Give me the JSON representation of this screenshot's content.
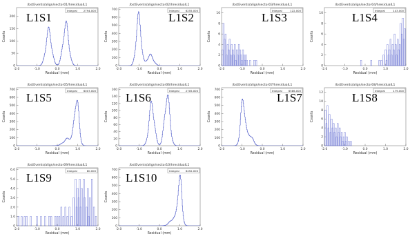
{
  "chart_data": [
    {
      "type": "line",
      "title": "/bstEvents/align/sector01/hresidualL1",
      "label": "L1S1",
      "integral_label": "Integral",
      "integral": "2794.000",
      "xlabel": "Residual (mm)",
      "ylabel": "Counts",
      "xlim": [
        -2.0,
        2.0
      ],
      "ylim": [
        0,
        235
      ],
      "xticks": [
        "-2.0",
        "-1.0",
        "0.0",
        "1.0",
        "2.0"
      ],
      "yticks": [
        "0",
        "50",
        "100",
        "150",
        "200"
      ],
      "peaks": [
        {
          "x": -0.42,
          "w": 0.14,
          "h": 140
        },
        {
          "x": 0.42,
          "w": 0.14,
          "h": 165
        }
      ],
      "noise": []
    },
    {
      "type": "line",
      "title": "/bstEvents/align/sector02/hresidualL1",
      "label": "L1S2",
      "integral_label": "Integral",
      "integral": "6255.000",
      "xlabel": "Residual (mm)",
      "ylabel": "Counts",
      "xlim": [
        -2.0,
        2.0
      ],
      "ylim": [
        0,
        720
      ],
      "xticks": [
        "-2.0",
        "-1.0",
        "0.0",
        "1.0",
        "2.0"
      ],
      "yticks": [
        "0",
        "100",
        "200",
        "300",
        "400",
        "500",
        "600",
        "700"
      ],
      "peaks": [
        {
          "x": -1.02,
          "w": 0.12,
          "h": 600
        },
        {
          "x": -0.45,
          "w": 0.15,
          "h": 130
        }
      ],
      "noise": []
    },
    {
      "type": "bar",
      "title": "/bstEvents/align/sector03/hresidualL1",
      "label": "L1S3",
      "integral_label": "Integral",
      "integral": "122.000",
      "xlabel": "Residual (mm)",
      "ylabel": "Counts",
      "xlim": [
        -2.0,
        2.0
      ],
      "ylim": [
        0,
        11
      ],
      "xticks": [
        "-2.0",
        "-1.0",
        "0.0",
        "1.0",
        "2.0"
      ],
      "yticks": [
        "0",
        "2",
        "4",
        "6",
        "8",
        "10"
      ],
      "peaks": [],
      "noise": [
        [
          -1.95,
          3
        ],
        [
          -1.9,
          8
        ],
        [
          -1.85,
          5
        ],
        [
          -1.8,
          6
        ],
        [
          -1.75,
          2
        ],
        [
          -1.7,
          4
        ],
        [
          -1.65,
          3
        ],
        [
          -1.6,
          5
        ],
        [
          -1.55,
          2
        ],
        [
          -1.5,
          4
        ],
        [
          -1.45,
          3
        ],
        [
          -1.4,
          2
        ],
        [
          -1.35,
          4
        ],
        [
          -1.3,
          1
        ],
        [
          -1.25,
          3
        ],
        [
          -1.2,
          2
        ],
        [
          -1.15,
          4
        ],
        [
          -1.1,
          3
        ],
        [
          -1.05,
          2
        ],
        [
          -1.0,
          1
        ],
        [
          -0.95,
          3
        ],
        [
          -0.9,
          2
        ],
        [
          -0.85,
          1
        ],
        [
          -0.8,
          2
        ],
        [
          -0.75,
          1
        ],
        [
          -0.6,
          1
        ],
        [
          -0.4,
          1
        ],
        [
          -0.3,
          1
        ]
      ]
    },
    {
      "type": "bar",
      "title": "/bstEvents/align/sector04/hresidualL1",
      "label": "L1S4",
      "integral_label": "Integral",
      "integral": "143.000",
      "xlabel": "Residual (mm)",
      "ylabel": "Counts",
      "xlim": [
        -2.0,
        2.0
      ],
      "ylim": [
        0,
        11
      ],
      "xticks": [
        "-2.0",
        "-1.0",
        "0.0",
        "1.0",
        "2.0"
      ],
      "yticks": [
        "0",
        "2",
        "4",
        "6",
        "8",
        "10"
      ],
      "peaks": [],
      "noise": [
        [
          -0.2,
          1
        ],
        [
          0.3,
          1
        ],
        [
          0.7,
          1
        ],
        [
          0.8,
          1
        ],
        [
          0.9,
          2
        ],
        [
          1.0,
          3
        ],
        [
          1.05,
          1
        ],
        [
          1.1,
          4
        ],
        [
          1.15,
          2
        ],
        [
          1.2,
          3
        ],
        [
          1.25,
          5
        ],
        [
          1.3,
          2
        ],
        [
          1.35,
          4
        ],
        [
          1.4,
          3
        ],
        [
          1.45,
          6
        ],
        [
          1.5,
          4
        ],
        [
          1.55,
          2
        ],
        [
          1.6,
          5
        ],
        [
          1.65,
          3
        ],
        [
          1.7,
          4
        ],
        [
          1.75,
          8
        ],
        [
          1.8,
          6
        ],
        [
          1.85,
          9
        ],
        [
          1.9,
          5
        ],
        [
          1.95,
          7
        ]
      ]
    },
    {
      "type": "line",
      "title": "/bstEvents/align/sector05/hresidualL1",
      "label": "L1S5",
      "integral_label": "Integral",
      "integral": "6007.000",
      "xlabel": "Residual (mm)",
      "ylabel": "Counts",
      "xlim": [
        -2.0,
        2.0
      ],
      "ylim": [
        0,
        720
      ],
      "xticks": [
        "-2.0",
        "-1.0",
        "0.0",
        "1.0",
        "2.0"
      ],
      "yticks": [
        "0",
        "100",
        "200",
        "300",
        "400",
        "500",
        "600",
        "700"
      ],
      "peaks": [
        {
          "x": 0.95,
          "w": 0.11,
          "h": 570
        },
        {
          "x": 0.55,
          "w": 0.22,
          "h": 90
        }
      ],
      "noise": []
    },
    {
      "type": "line",
      "title": "/bstEvents/align/sector06/hresidualL1",
      "label": "L1S6",
      "integral_label": "Integral",
      "integral": "2705.000",
      "xlabel": "Residual (mm)",
      "ylabel": "Counts",
      "xlim": [
        -2.0,
        2.0
      ],
      "ylim": [
        0,
        165
      ],
      "xticks": [
        "-2.0",
        "-1.0",
        "0.0",
        "1.0",
        "2.0"
      ],
      "yticks": [
        "0",
        "20",
        "40",
        "60",
        "80",
        "100",
        "120",
        "140",
        "160"
      ],
      "peaks": [
        {
          "x": -0.38,
          "w": 0.13,
          "h": 118
        },
        {
          "x": 0.38,
          "w": 0.13,
          "h": 140
        }
      ],
      "noise": []
    },
    {
      "type": "line",
      "title": "/bstEvents/align/sector07/hresidualL1",
      "label": "L1S7",
      "integral_label": "Integral",
      "integral": "6586.000",
      "xlabel": "Residual (mm)",
      "ylabel": "Counts",
      "xlim": [
        -2.0,
        2.0
      ],
      "ylim": [
        0,
        720
      ],
      "xticks": [
        "-2.0",
        "-1.0",
        "0.0",
        "1.0",
        "2.0"
      ],
      "yticks": [
        "0",
        "100",
        "200",
        "300",
        "400",
        "500",
        "600",
        "700"
      ],
      "peaks": [
        {
          "x": -0.95,
          "w": 0.11,
          "h": 560
        },
        {
          "x": -0.6,
          "w": 0.14,
          "h": 130
        }
      ],
      "noise": []
    },
    {
      "type": "bar",
      "title": "/bstEvents/align/sector08/hresidualL1",
      "label": "L1S8",
      "integral_label": "Integral",
      "integral": "179.000",
      "xlabel": "Residual (mm)",
      "ylabel": "Counts",
      "xlim": [
        -2.0,
        2.0
      ],
      "ylim": [
        0,
        13
      ],
      "xticks": [
        "-2.0",
        "-1.0",
        "0.0",
        "1.0",
        "2.0"
      ],
      "yticks": [
        "0",
        "2",
        "4",
        "6",
        "8",
        "10",
        "12"
      ],
      "peaks": [],
      "noise": [
        [
          -1.95,
          8
        ],
        [
          -1.9,
          5
        ],
        [
          -1.85,
          9
        ],
        [
          -1.8,
          4
        ],
        [
          -1.75,
          7
        ],
        [
          -1.7,
          3
        ],
        [
          -1.65,
          6
        ],
        [
          -1.6,
          4
        ],
        [
          -1.55,
          5
        ],
        [
          -1.5,
          3
        ],
        [
          -1.45,
          4
        ],
        [
          -1.4,
          2
        ],
        [
          -1.35,
          5
        ],
        [
          -1.3,
          3
        ],
        [
          -1.25,
          4
        ],
        [
          -1.2,
          2
        ],
        [
          -1.15,
          3
        ],
        [
          -1.1,
          1
        ],
        [
          -1.05,
          2
        ],
        [
          -1.0,
          3
        ],
        [
          -0.95,
          1
        ],
        [
          -0.9,
          2
        ],
        [
          -0.8,
          1
        ],
        [
          -0.7,
          1
        ]
      ]
    },
    {
      "type": "bar",
      "title": "/bstEvents/align/sector09/hresidualL1",
      "label": "L1S9",
      "integral_label": "Integral",
      "integral": "80.000",
      "xlabel": "Residual (mm)",
      "ylabel": "Counts",
      "xlim": [
        -2.0,
        2.0
      ],
      "ylim": [
        0,
        6.2
      ],
      "xticks": [
        "-2.0",
        "-1.0",
        "0.0",
        "1.0",
        "2.0"
      ],
      "yticks": [
        "0",
        "1.0",
        "2.0",
        "3.0",
        "4.0",
        "5.0",
        "6.0"
      ],
      "peaks": [],
      "noise": [
        [
          -1.9,
          1
        ],
        [
          -1.75,
          1
        ],
        [
          -1.6,
          1
        ],
        [
          -1.5,
          1
        ],
        [
          -1.3,
          1
        ],
        [
          -1.0,
          1
        ],
        [
          -0.8,
          1
        ],
        [
          -0.6,
          1
        ],
        [
          -0.4,
          1
        ],
        [
          -0.3,
          1
        ],
        [
          -0.1,
          1
        ],
        [
          0.0,
          1
        ],
        [
          0.1,
          1
        ],
        [
          0.2,
          2
        ],
        [
          0.3,
          1
        ],
        [
          0.4,
          2
        ],
        [
          0.5,
          1
        ],
        [
          0.6,
          2
        ],
        [
          0.7,
          1
        ],
        [
          0.8,
          3
        ],
        [
          0.9,
          5
        ],
        [
          0.95,
          2
        ],
        [
          1.0,
          4
        ],
        [
          1.05,
          3
        ],
        [
          1.1,
          5
        ],
        [
          1.15,
          2
        ],
        [
          1.2,
          4
        ],
        [
          1.3,
          5
        ],
        [
          1.35,
          3
        ],
        [
          1.45,
          2
        ],
        [
          1.5,
          4
        ],
        [
          1.55,
          1
        ],
        [
          1.6,
          3
        ],
        [
          1.7,
          5
        ],
        [
          1.8,
          2
        ],
        [
          1.9,
          1
        ]
      ]
    },
    {
      "type": "line",
      "title": "/bstEvents/align/sector10/hresidualL1",
      "label": "L1S10",
      "integral_label": "Integral",
      "integral": "6452.000",
      "xlabel": "Residual (mm)",
      "ylabel": "Counts",
      "xlim": [
        -2.0,
        2.0
      ],
      "ylim": [
        0,
        720
      ],
      "xticks": [
        "-2.0",
        "-1.0",
        "0.0",
        "1.0",
        "2.0"
      ],
      "yticks": [
        "0",
        "100",
        "200",
        "300",
        "400",
        "500",
        "600",
        "700"
      ],
      "peaks": [
        {
          "x": 1.0,
          "w": 0.1,
          "h": 570
        },
        {
          "x": 0.7,
          "w": 0.18,
          "h": 90
        }
      ],
      "noise": []
    }
  ]
}
